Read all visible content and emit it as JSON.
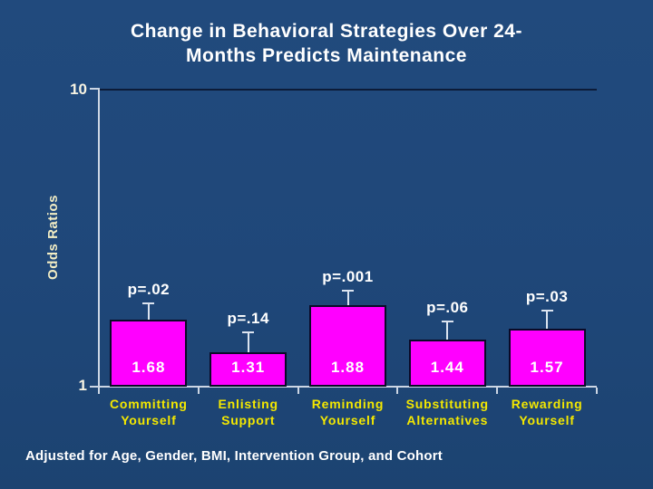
{
  "slide": {
    "title_lines": [
      "Change in Behavioral Strategies Over 24-",
      "Months Predicts Maintenance"
    ],
    "footnote": "Adjusted for Age, Gender, BMI, Intervention Group, and Cohort",
    "background_color": "#1f4779"
  },
  "chart_data": {
    "type": "bar",
    "title": "Change in Behavioral Strategies Over 24-Months Predicts Maintenance",
    "ylabel": "Odds Ratios",
    "xlabel": "",
    "yscale": "log",
    "ylim": [
      1,
      10
    ],
    "ytick_labels": [
      "1",
      "10"
    ],
    "grid": false,
    "legend": false,
    "categories": [
      "Committing Yourself",
      "Enlisting Support",
      "Reminding Yourself",
      "Substituting Alternatives",
      "Rewarding Yourself"
    ],
    "values": [
      1.68,
      1.31,
      1.88,
      1.44,
      1.57
    ],
    "value_labels": [
      "1.68",
      "1.31",
      "1.88",
      "1.44",
      "1.57"
    ],
    "p_value_labels": [
      "p=.02",
      "p=.14",
      "p=.001",
      "p=.06",
      "p=.03"
    ],
    "error_upper_estimates": [
      1.89,
      1.51,
      2.09,
      1.65,
      1.79
    ],
    "bar_color": "#ff00ff",
    "bar_border_color": "#0a0a28",
    "category_label_color": "#f4e800",
    "annotation_color": "#ffffff",
    "footnote": "Adjusted for Age, Gender, BMI, Intervention Group, and Cohort"
  }
}
